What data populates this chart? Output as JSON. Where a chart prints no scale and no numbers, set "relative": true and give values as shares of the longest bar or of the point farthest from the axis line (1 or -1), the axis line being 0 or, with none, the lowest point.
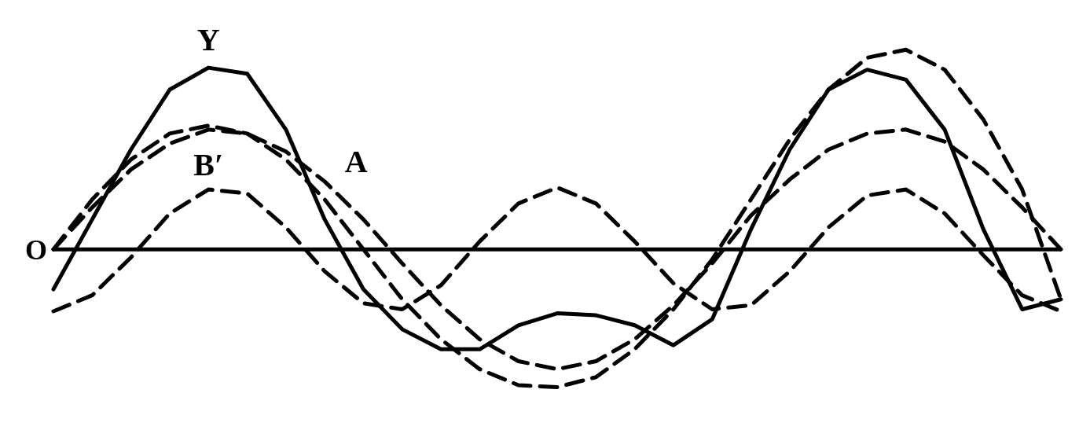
{
  "chart_data": {
    "type": "line",
    "relative": true,
    "marker": "none",
    "tick_labels": false,
    "categories": [
      null,
      null,
      null,
      null,
      null,
      null,
      null,
      null,
      null,
      null,
      null,
      null,
      null,
      null,
      null,
      null,
      null,
      null,
      null,
      null,
      null,
      null,
      null,
      null,
      null,
      null,
      null
    ],
    "annotations": [
      "O"
    ],
    "series": [
      {
        "name": "Y",
        "color": "#000000",
        "line_style": "solid",
        "values": [
          -0.2,
          0.15,
          0.5,
          0.8,
          0.91,
          0.88,
          0.6,
          0.15,
          -0.2,
          -0.4,
          -0.5,
          -0.5,
          -0.38,
          -0.32,
          -0.33,
          -0.38,
          -0.48,
          -0.35,
          0.1,
          0.5,
          0.8,
          0.9,
          0.85,
          0.6,
          0.1,
          -0.3,
          -0.25
        ]
      },
      {
        "name": "A",
        "color": "#000000",
        "line_style": "dashed",
        "values": [
          0,
          0.21,
          0.4,
          0.53,
          0.6,
          0.58,
          0.49,
          0.34,
          0.15,
          -0.07,
          -0.28,
          -0.45,
          -0.56,
          -0.6,
          -0.56,
          -0.45,
          -0.28,
          -0.07,
          0.17,
          0.35,
          0.5,
          0.58,
          0.6,
          0.54,
          0.4,
          0.21,
          0
        ]
      },
      {
        "name": "B′",
        "color": "#000000",
        "line_style": "dashed",
        "values": [
          -0.31,
          -0.23,
          -0.04,
          0.18,
          0.3,
          0.28,
          0.11,
          -0.11,
          -0.27,
          -0.3,
          -0.18,
          0.04,
          0.23,
          0.31,
          0.23,
          0.04,
          -0.17,
          -0.3,
          -0.28,
          -0.11,
          0.11,
          0.27,
          0.3,
          0.18,
          -0.03,
          -0.23,
          -0.31
        ]
      },
      {
        "color": "#000000",
        "line_style": "dashed",
        "values": [
          0,
          0.25,
          0.45,
          0.58,
          0.62,
          0.58,
          0.45,
          0.25,
          0,
          -0.25,
          -0.45,
          -0.6,
          -0.68,
          -0.69,
          -0.64,
          -0.5,
          -0.3,
          -0.05,
          0.25,
          0.55,
          0.8,
          0.96,
          1,
          0.9,
          0.65,
          0.3,
          -0.25
        ]
      }
    ]
  }
}
